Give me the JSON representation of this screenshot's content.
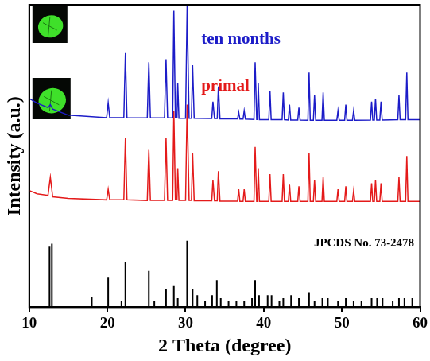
{
  "chart_data": {
    "type": "line",
    "x_label": "2 Theta (degree)",
    "y_label": "Intensity (a.u.)",
    "xlim": [
      10,
      60
    ],
    "xticks": [
      10,
      20,
      30,
      40,
      50,
      60
    ],
    "ylim": [
      0,
      100
    ],
    "tick_labels": "x",
    "grid": false,
    "series": [
      {
        "name": "ten months",
        "color": "#1c1cc8",
        "type": "line",
        "x": [
          10,
          11,
          12.4,
          12.7,
          13,
          15,
          19.9,
          20.1,
          20.3,
          22.1,
          22.3,
          22.5,
          25.1,
          25.3,
          25.5,
          27.3,
          27.5,
          27.7,
          28.35,
          28.5,
          28.7,
          28.9,
          29,
          29.15,
          30,
          30.2,
          30.45,
          30.75,
          30.9,
          31.1,
          33.35,
          33.5,
          33.7,
          34.05,
          34.2,
          34.4,
          36.65,
          36.8,
          36.95,
          37.35,
          37.5,
          37.65,
          38.75,
          38.9,
          39.1,
          39.2,
          39.3,
          39.45,
          40.65,
          40.8,
          40.95,
          42.35,
          42.5,
          42.65,
          43.15,
          43.3,
          43.45,
          44.35,
          44.5,
          44.65,
          45.65,
          45.8,
          45.95,
          46.35,
          46.5,
          46.65,
          47.45,
          47.6,
          47.75,
          49.35,
          49.5,
          49.65,
          50.35,
          50.5,
          50.65,
          51.35,
          51.5,
          51.65,
          53.65,
          53.8,
          53.95,
          54.15,
          54.3,
          54.45,
          54.85,
          55,
          55.15,
          57.15,
          57.3,
          57.45,
          58.15,
          58.3,
          58.45,
          60
        ],
        "values": [
          69,
          67.5,
          66,
          67,
          65.5,
          63.5,
          62.7,
          67.6,
          62.7,
          62.7,
          84,
          62.7,
          62.6,
          81,
          62.6,
          62.6,
          82,
          62.6,
          62.6,
          98,
          62.6,
          62.6,
          74,
          62.5,
          62.5,
          99.5,
          62.5,
          62.5,
          80,
          62.5,
          62.4,
          68,
          62.4,
          62.4,
          73,
          62.3,
          62.3,
          64.5,
          62.2,
          62.2,
          65,
          62.2,
          62.1,
          81,
          62.1,
          62.1,
          74,
          62,
          62,
          71.6,
          62,
          62,
          71,
          62,
          61.9,
          67,
          61.9,
          61.9,
          66,
          61.9,
          61.8,
          77.6,
          61.8,
          61.8,
          70,
          61.8,
          61.8,
          71,
          61.8,
          61.8,
          65,
          61.8,
          61.8,
          67,
          61.8,
          61.8,
          65,
          61.8,
          61.9,
          68,
          61.9,
          61.9,
          69,
          61.9,
          61.9,
          68,
          61.9,
          62,
          70,
          62,
          62,
          77.6,
          62,
          62
        ]
      },
      {
        "name": "primal",
        "color": "#e41a1a",
        "type": "line",
        "x": [
          10,
          11,
          12.4,
          12.7,
          13,
          15,
          19.9,
          20.1,
          20.3,
          22.1,
          22.3,
          22.5,
          25.1,
          25.3,
          25.5,
          27.3,
          27.5,
          27.7,
          28.35,
          28.5,
          28.7,
          28.9,
          29,
          29.15,
          30,
          30.2,
          30.45,
          30.75,
          30.9,
          31.1,
          33.35,
          33.5,
          33.7,
          34.05,
          34.2,
          34.4,
          36.65,
          36.8,
          36.95,
          37.35,
          37.5,
          37.65,
          38.75,
          38.9,
          39.1,
          39.2,
          39.3,
          39.45,
          40.65,
          40.8,
          40.95,
          42.35,
          42.5,
          42.65,
          43.15,
          43.3,
          43.45,
          44.35,
          44.5,
          44.65,
          45.65,
          45.8,
          45.95,
          46.35,
          46.5,
          46.65,
          47.45,
          47.6,
          47.75,
          49.35,
          49.5,
          49.65,
          50.35,
          50.5,
          50.65,
          51.35,
          51.5,
          51.65,
          53.65,
          53.8,
          53.95,
          54.15,
          54.3,
          54.45,
          54.85,
          55,
          55.15,
          57.15,
          57.3,
          57.45,
          58.15,
          58.3,
          58.45,
          60
        ],
        "values": [
          38.6,
          37.5,
          37,
          43,
          36.5,
          36,
          35.5,
          39,
          35.5,
          35.5,
          56,
          35.5,
          35.3,
          52,
          35.3,
          35.3,
          56,
          35.3,
          35.3,
          65,
          35.5,
          35.5,
          46,
          35.3,
          35.3,
          67,
          35.3,
          35.3,
          51,
          35.2,
          35.2,
          42,
          35.2,
          35.2,
          45,
          35.1,
          35.1,
          39,
          35,
          35,
          39,
          35,
          35,
          53,
          35,
          35,
          46,
          35,
          35,
          44,
          35,
          35,
          44,
          35,
          35,
          40.5,
          35,
          35,
          40,
          35,
          35,
          51,
          35,
          35,
          42,
          35,
          35,
          43,
          35,
          35,
          39,
          35,
          35,
          40,
          35,
          35,
          38.5,
          35,
          35,
          41,
          35,
          35,
          42,
          35,
          35,
          41,
          35,
          35,
          43,
          35,
          35,
          50,
          35,
          35
        ]
      },
      {
        "name": "JPCDS No. 73-2478",
        "color": "#000000",
        "type": "stick",
        "x": [
          12.6,
          12.9,
          18,
          20.1,
          21.8,
          22.3,
          25.3,
          26,
          27.5,
          28.5,
          29,
          30.2,
          30.9,
          31.5,
          32.5,
          33.4,
          34,
          34.5,
          35.5,
          36.5,
          37.5,
          38.5,
          38.9,
          39.4,
          40.5,
          41,
          42,
          42.5,
          43.5,
          44.5,
          45.8,
          46.5,
          47.5,
          48.2,
          49.5,
          50.5,
          51.5,
          52.5,
          53.8,
          54.5,
          55.2,
          56.5,
          57.3,
          58,
          59
        ],
        "values": [
          20,
          21,
          3.5,
          10,
          2,
          15,
          12,
          2,
          6,
          7,
          3,
          22,
          6,
          4,
          2,
          4,
          9,
          3,
          2,
          2,
          2,
          3,
          9,
          4,
          4,
          4,
          2,
          3,
          4,
          3,
          5,
          2,
          3,
          3,
          2,
          3,
          2,
          2,
          3,
          3,
          3,
          2,
          3,
          3,
          3
        ]
      }
    ]
  }
}
